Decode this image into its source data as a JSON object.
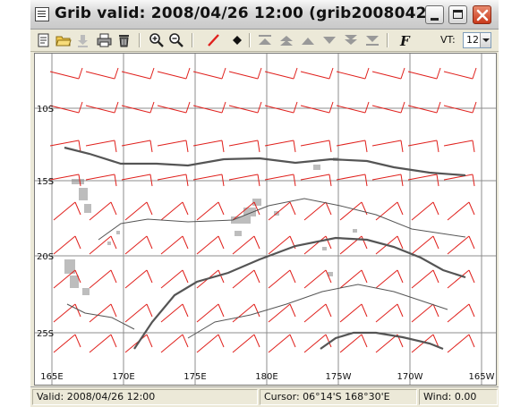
{
  "window": {
    "title": "Grib valid: 2008/04/26 12:00 (grib2008042..."
  },
  "toolbar": {
    "tools": [
      "open-file-icon",
      "folder-icon",
      "download-icon",
      "print-icon",
      "delete-icon",
      "zoom-in-icon",
      "zoom-out-icon",
      "draw-line-icon",
      "waypoint-icon",
      "first-frame-icon",
      "fast-back-icon",
      "back-icon",
      "forward-icon",
      "fast-forward-icon",
      "last-frame-icon",
      "font-icon"
    ],
    "vt_label": "VT:",
    "vt_value": "12"
  },
  "map": {
    "lat_labels": [
      "10S",
      "15S",
      "20S",
      "25S"
    ],
    "lon_labels": [
      "165E",
      "170E",
      "175E",
      "180E",
      "175W",
      "170W",
      "165W"
    ],
    "colors": {
      "wind_barb": "#e0201c",
      "grid": "#8c8c8c",
      "isobar": "#555555",
      "land": "#bdbdbd"
    }
  },
  "statusbar": {
    "valid": "Valid: 2008/04/26 12:00",
    "cursor": "Cursor: 06°14'S  168°30'E",
    "wind": "Wind: 0.00"
  }
}
